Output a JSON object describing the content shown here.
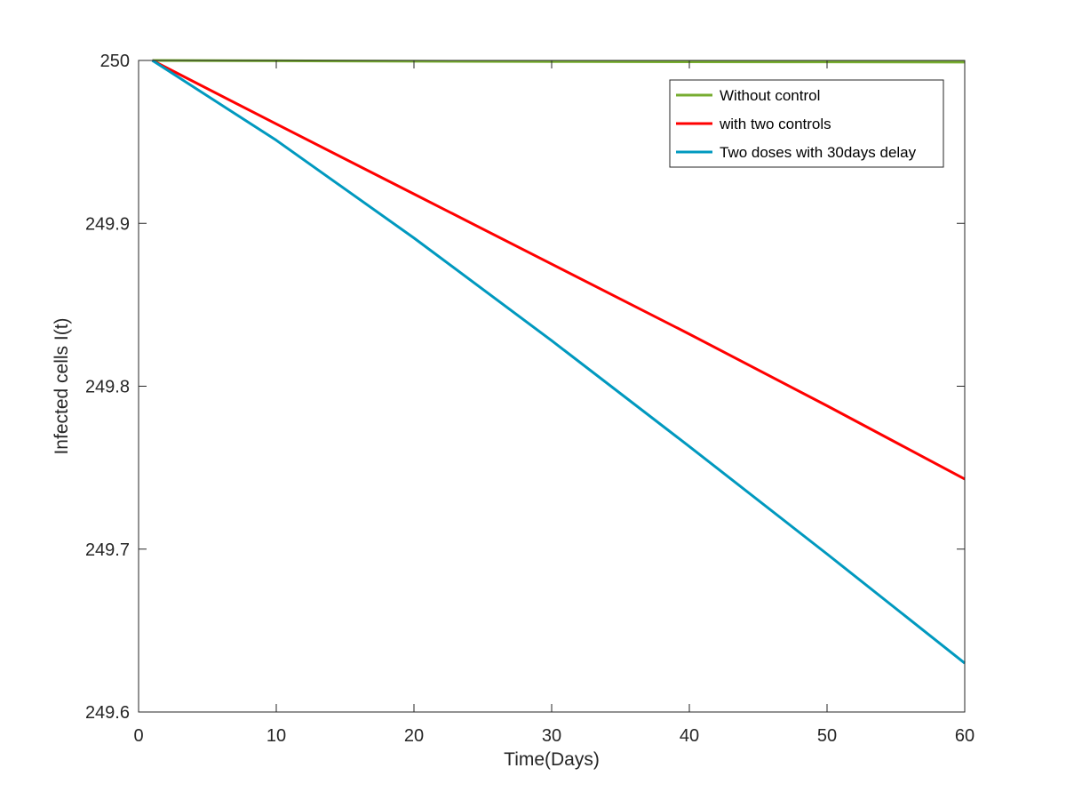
{
  "chart_data": {
    "type": "line",
    "xlabel": "Time(Days)",
    "ylabel": "Infected cells I(t)",
    "xlim": [
      0,
      60
    ],
    "ylim": [
      249.6,
      250
    ],
    "xticks": [
      0,
      10,
      20,
      30,
      40,
      50,
      60
    ],
    "yticks": [
      249.6,
      249.7,
      249.8,
      249.9,
      250
    ],
    "grid": false,
    "legend_position": "top-right",
    "series": [
      {
        "name": "Without control",
        "color": "#77AC30",
        "x": [
          1,
          10,
          20,
          30,
          40,
          50,
          60
        ],
        "y": [
          250.0,
          249.9998,
          249.9995,
          249.9993,
          249.9992,
          249.9991,
          249.999
        ]
      },
      {
        "name": "with two controls",
        "color": "#FF0000",
        "x": [
          1,
          10,
          20,
          30,
          40,
          50,
          60
        ],
        "y": [
          250.0,
          249.961,
          249.918,
          249.875,
          249.832,
          249.788,
          249.743
        ]
      },
      {
        "name": "Two doses with 30days delay",
        "color": "#0099BF",
        "x": [
          1,
          10,
          20,
          30,
          40,
          50,
          60
        ],
        "y": [
          250.0,
          249.951,
          249.891,
          249.828,
          249.763,
          249.697,
          249.63
        ]
      }
    ]
  }
}
